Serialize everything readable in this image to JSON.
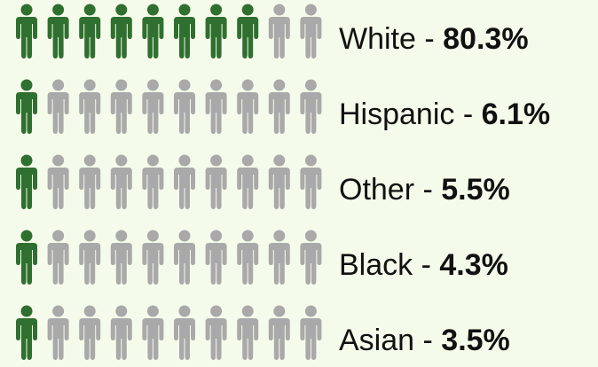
{
  "chart_data": {
    "type": "pictograph",
    "categories": [
      "White",
      "Hispanic",
      "Other",
      "Black",
      "Asian"
    ],
    "separator": " - ",
    "values": [
      80.3,
      6.1,
      5.5,
      4.3,
      3.5
    ],
    "value_labels": [
      "80.3%",
      "6.1%",
      "5.5%",
      "4.3%",
      "3.5%"
    ],
    "filled": [
      8,
      1,
      1,
      1,
      1
    ],
    "icons_per_row": 10,
    "color": "#2f6f2f",
    "empty_color": "#a9a9a9"
  }
}
